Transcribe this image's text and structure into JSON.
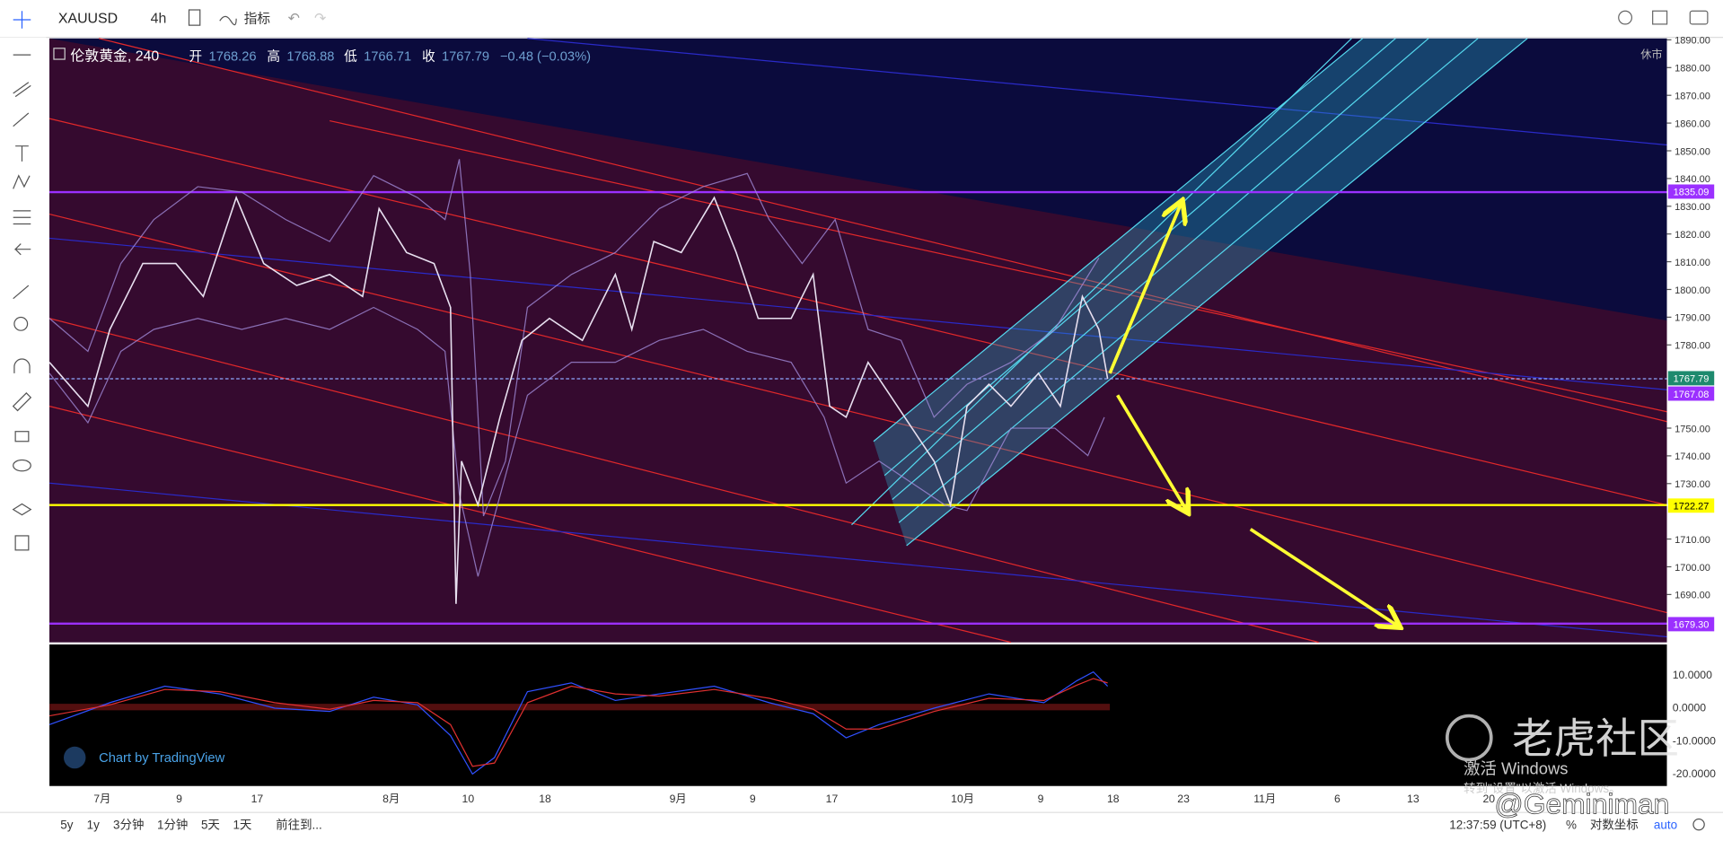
{
  "toolbar": {
    "symbol": "XAUUSD",
    "interval": "4h",
    "indicators": "指标"
  },
  "legend": {
    "name": "伦敦黄金, 240",
    "open_label": "开",
    "open": "1768.26",
    "high_label": "高",
    "high": "1768.88",
    "low_label": "低",
    "low": "1766.71",
    "close_label": "收",
    "close": "1767.79",
    "change": "−0.48 (−0.03%)",
    "status": "休市"
  },
  "price_axis": [
    "1890.00",
    "1880.00",
    "1870.00",
    "1860.00",
    "1850.00",
    "1840.00",
    "1830.00",
    "1820.00",
    "1810.00",
    "1800.00",
    "1790.00",
    "1780.00",
    "1750.00",
    "1740.00",
    "1730.00",
    "1710.00",
    "1700.00",
    "1690.00"
  ],
  "price_badges": [
    "1835.09",
    "1767.79",
    "1767.08",
    "1722.27",
    "1679.30"
  ],
  "macd_axis": [
    "10.0000",
    "0.0000",
    "-10.0000",
    "-20.0000"
  ],
  "time_axis": [
    "7月",
    "9",
    "17",
    "8月",
    "10",
    "18",
    "9月",
    "9",
    "17",
    "10月",
    "9",
    "18",
    "23",
    "11月",
    "6",
    "13",
    "20"
  ],
  "branding": "Chart by TradingView",
  "bottom_bar": {
    "ranges": [
      "5y",
      "1y",
      "3分钟",
      "1分钟",
      "5天",
      "1天"
    ],
    "goto": "前往到...",
    "clock": "12:37:59 (UTC+8)",
    "percent": "%",
    "log": "对数坐标",
    "auto": "auto"
  },
  "watermark": {
    "site": "老虎社区",
    "user": "@Geminiman",
    "activate": "激活 Windows",
    "activate_hint": "转到\"设置\"以激活 Windows。"
  }
}
